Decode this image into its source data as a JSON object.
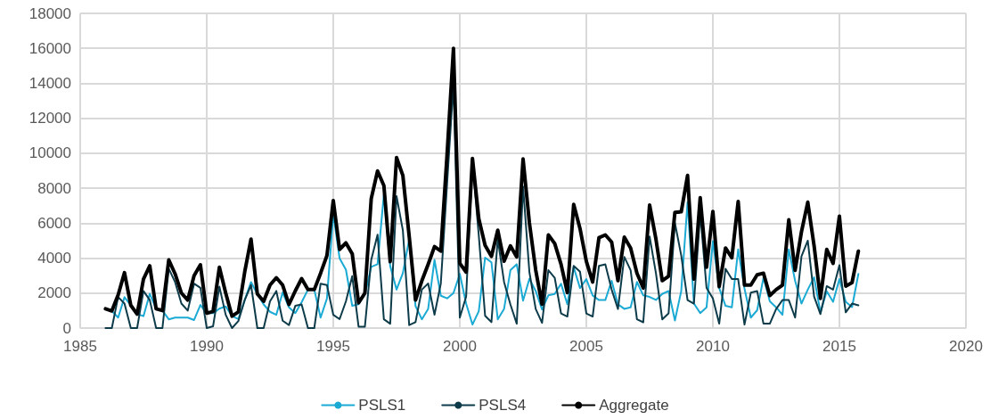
{
  "chart_data": {
    "type": "line",
    "x": [
      1986,
      1986.25,
      1986.5,
      1986.75,
      1987,
      1987.25,
      1987.5,
      1987.75,
      1988,
      1988.25,
      1988.5,
      1988.75,
      1989,
      1989.25,
      1989.5,
      1989.75,
      1990,
      1990.25,
      1990.5,
      1990.75,
      1991,
      1991.25,
      1991.5,
      1991.75,
      1992,
      1992.25,
      1992.5,
      1992.75,
      1993,
      1993.25,
      1993.5,
      1993.75,
      1994,
      1994.25,
      1994.5,
      1994.75,
      1995,
      1995.25,
      1995.5,
      1995.75,
      1996,
      1996.25,
      1996.5,
      1996.75,
      1997,
      1997.25,
      1997.5,
      1997.75,
      1998,
      1998.25,
      1998.5,
      1998.75,
      1999,
      1999.25,
      1999.5,
      1999.75,
      2000,
      2000.25,
      2000.5,
      2000.75,
      2001,
      2001.25,
      2001.5,
      2001.75,
      2002,
      2002.25,
      2002.5,
      2002.75,
      2003,
      2003.25,
      2003.5,
      2003.75,
      2004,
      2004.25,
      2004.5,
      2004.75,
      2005,
      2005.25,
      2005.5,
      2005.75,
      2006,
      2006.25,
      2006.5,
      2006.75,
      2007,
      2007.25,
      2007.5,
      2007.75,
      2008,
      2008.25,
      2008.5,
      2008.75,
      2009,
      2009.25,
      2009.5,
      2009.75,
      2010,
      2010.25,
      2010.5,
      2010.75,
      2011,
      2011.25,
      2011.5,
      2011.75,
      2012,
      2012.25,
      2012.5,
      2012.75,
      2013,
      2013.25,
      2013.5,
      2013.75,
      2014,
      2014.25,
      2014.5,
      2014.75,
      2015,
      2015.25,
      2015.5,
      2015.75
    ],
    "series": [
      {
        "name": "PSLS1",
        "color": "#1aaad4",
        "values": [
          1100,
          980,
          600,
          1770,
          1300,
          800,
          680,
          1960,
          1100,
          1000,
          500,
          600,
          600,
          600,
          460,
          1320,
          850,
          850,
          1110,
          1240,
          680,
          520,
          1600,
          2630,
          1950,
          1350,
          930,
          760,
          2040,
          1180,
          860,
          1480,
          2200,
          2200,
          600,
          1690,
          6530,
          3990,
          3340,
          1270,
          1360,
          1920,
          3500,
          3650,
          7650,
          3550,
          2200,
          3140,
          5080,
          1260,
          500,
          1100,
          3900,
          1850,
          1700,
          2000,
          3100,
          1400,
          200,
          960,
          4030,
          3760,
          500,
          1100,
          3310,
          3650,
          1570,
          2820,
          2120,
          1060,
          1870,
          1950,
          2540,
          1360,
          3480,
          2290,
          2800,
          1870,
          1600,
          1600,
          2700,
          1360,
          1100,
          1190,
          2640,
          1870,
          1780,
          1610,
          1950,
          2120,
          430,
          2120,
          7200,
          1400,
          860,
          1180,
          4970,
          2290,
          1270,
          1190,
          4500,
          2260,
          600,
          1020,
          2890,
          1530,
          1190,
          760,
          4500,
          2700,
          1400,
          2200,
          2900,
          900,
          2100,
          1500,
          2800,
          1500,
          1200,
          3100
        ]
      },
      {
        "name": "PSLS4",
        "color": "#0d3b4a",
        "values": [
          0,
          0,
          1780,
          1400,
          0,
          0,
          2120,
          1600,
          0,
          0,
          3400,
          2630,
          1400,
          1000,
          2540,
          2300,
          0,
          100,
          2370,
          760,
          0,
          400,
          1600,
          2460,
          0,
          0,
          1530,
          2120,
          420,
          170,
          1270,
          1350,
          0,
          0,
          2540,
          2460,
          760,
          510,
          1530,
          2970,
          80,
          80,
          3900,
          5340,
          500,
          250,
          7550,
          5590,
          170,
          340,
          2200,
          2550,
          760,
          2550,
          8300,
          14000,
          600,
          1800,
          9500,
          5300,
          700,
          340,
          5100,
          2630,
          1350,
          250,
          8100,
          3200,
          1090,
          300,
          3310,
          2880,
          840,
          660,
          3560,
          3220,
          840,
          660,
          3560,
          3650,
          2200,
          1090,
          4070,
          3310,
          500,
          330,
          5240,
          3140,
          500,
          840,
          6020,
          4150,
          1600,
          1400,
          6600,
          2300,
          1700,
          250,
          3390,
          2800,
          2800,
          200,
          2030,
          2120,
          250,
          250,
          1090,
          1600,
          1600,
          600,
          4100,
          5000,
          1800,
          800,
          2400,
          2200,
          3600,
          900,
          1400,
          1300
        ]
      },
      {
        "name": "Aggregate",
        "color": "#000000",
        "values": [
          1100,
          980,
          1900,
          3170,
          1300,
          800,
          2800,
          3560,
          1100,
          1000,
          3900,
          3100,
          2000,
          1600,
          3000,
          3620,
          850,
          950,
          3480,
          2000,
          680,
          920,
          3200,
          5090,
          1950,
          1530,
          2460,
          2880,
          2460,
          1350,
          2130,
          2830,
          2200,
          2200,
          3140,
          4150,
          7290,
          4500,
          4870,
          4240,
          1440,
          2000,
          7400,
          8990,
          8150,
          3800,
          9750,
          8730,
          5250,
          1600,
          2700,
          3650,
          4660,
          4400,
          10000,
          16000,
          3700,
          3200,
          9700,
          6260,
          4730,
          4100,
          5600,
          3820,
          4700,
          4070,
          9670,
          6020,
          3310,
          1360,
          5330,
          4840,
          3650,
          2030,
          7070,
          5690,
          3820,
          2630,
          5170,
          5330,
          4920,
          2710,
          5200,
          4580,
          3140,
          2290,
          7040,
          5090,
          2710,
          2970,
          6620,
          6650,
          8730,
          2800,
          7460,
          3480,
          6670,
          2370,
          4580,
          4020,
          7240,
          2460,
          2460,
          3050,
          3140,
          1860,
          2200,
          2460,
          6190,
          3300,
          5500,
          7200,
          4700,
          1700,
          4500,
          3700,
          6400,
          2400,
          2600,
          4400
        ]
      }
    ],
    "xlim": [
      1985,
      2020
    ],
    "xticks": [
      1985,
      1990,
      1995,
      2000,
      2005,
      2010,
      2015,
      2020
    ],
    "ylim": [
      0,
      18000
    ],
    "yticks": [
      0,
      2000,
      4000,
      6000,
      8000,
      10000,
      12000,
      14000,
      16000,
      18000
    ],
    "grid": true,
    "legend": "bottom",
    "marker": "none",
    "line_style": "solid"
  }
}
